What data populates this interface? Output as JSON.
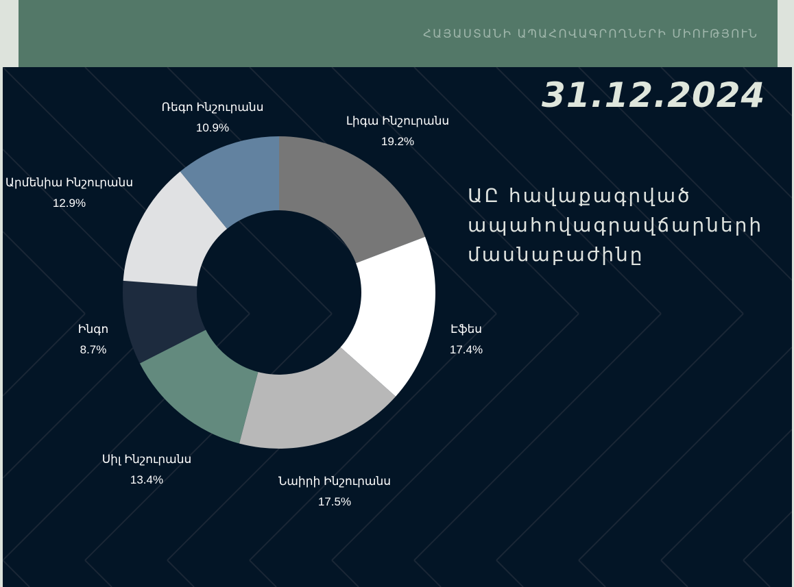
{
  "header": {
    "organization": "ՀԱՅԱՍՏԱՆԻ ԱՊԱՀՈՎԱԳՐՈՂՆԵՐԻ ՄԻՈՒԹՅՈՒՆ"
  },
  "date": "31.12.2024",
  "title": "ԱԸ հավաքագրված ապահովագրավճարների մասնաբաժինը",
  "chart_data": {
    "type": "pie",
    "variant": "donut",
    "title": "",
    "start": "top",
    "direction": "clockwise",
    "slices": [
      {
        "label": "Լիգա Ինշուրանս",
        "value": 19.2,
        "display": "19.2%",
        "color": "#777777"
      },
      {
        "label": "Էֆես",
        "value": 17.4,
        "display": "17.4%",
        "color": "#ffffff"
      },
      {
        "label": "Նաիրի Ինշուրանս",
        "value": 17.5,
        "display": "17.5%",
        "color": "#b8b8b8"
      },
      {
        "label": "Սիլ Ինշուրանս",
        "value": 13.4,
        "display": "13.4%",
        "color": "#638a7e"
      },
      {
        "label": "Ինգո",
        "value": 8.7,
        "display": "8.7%",
        "color": "#1d2b3e"
      },
      {
        "label": "Արմենիա Ինշուրանս",
        "value": 12.9,
        "display": "12.9%",
        "color": "#e0e1e3"
      },
      {
        "label": "Ռեգո Ինշուրանս",
        "value": 10.9,
        "display": "10.9%",
        "color": "#6282a0"
      }
    ]
  },
  "colors": {
    "header": "#537868",
    "background": "#031526",
    "outer": "#dde3dc"
  }
}
